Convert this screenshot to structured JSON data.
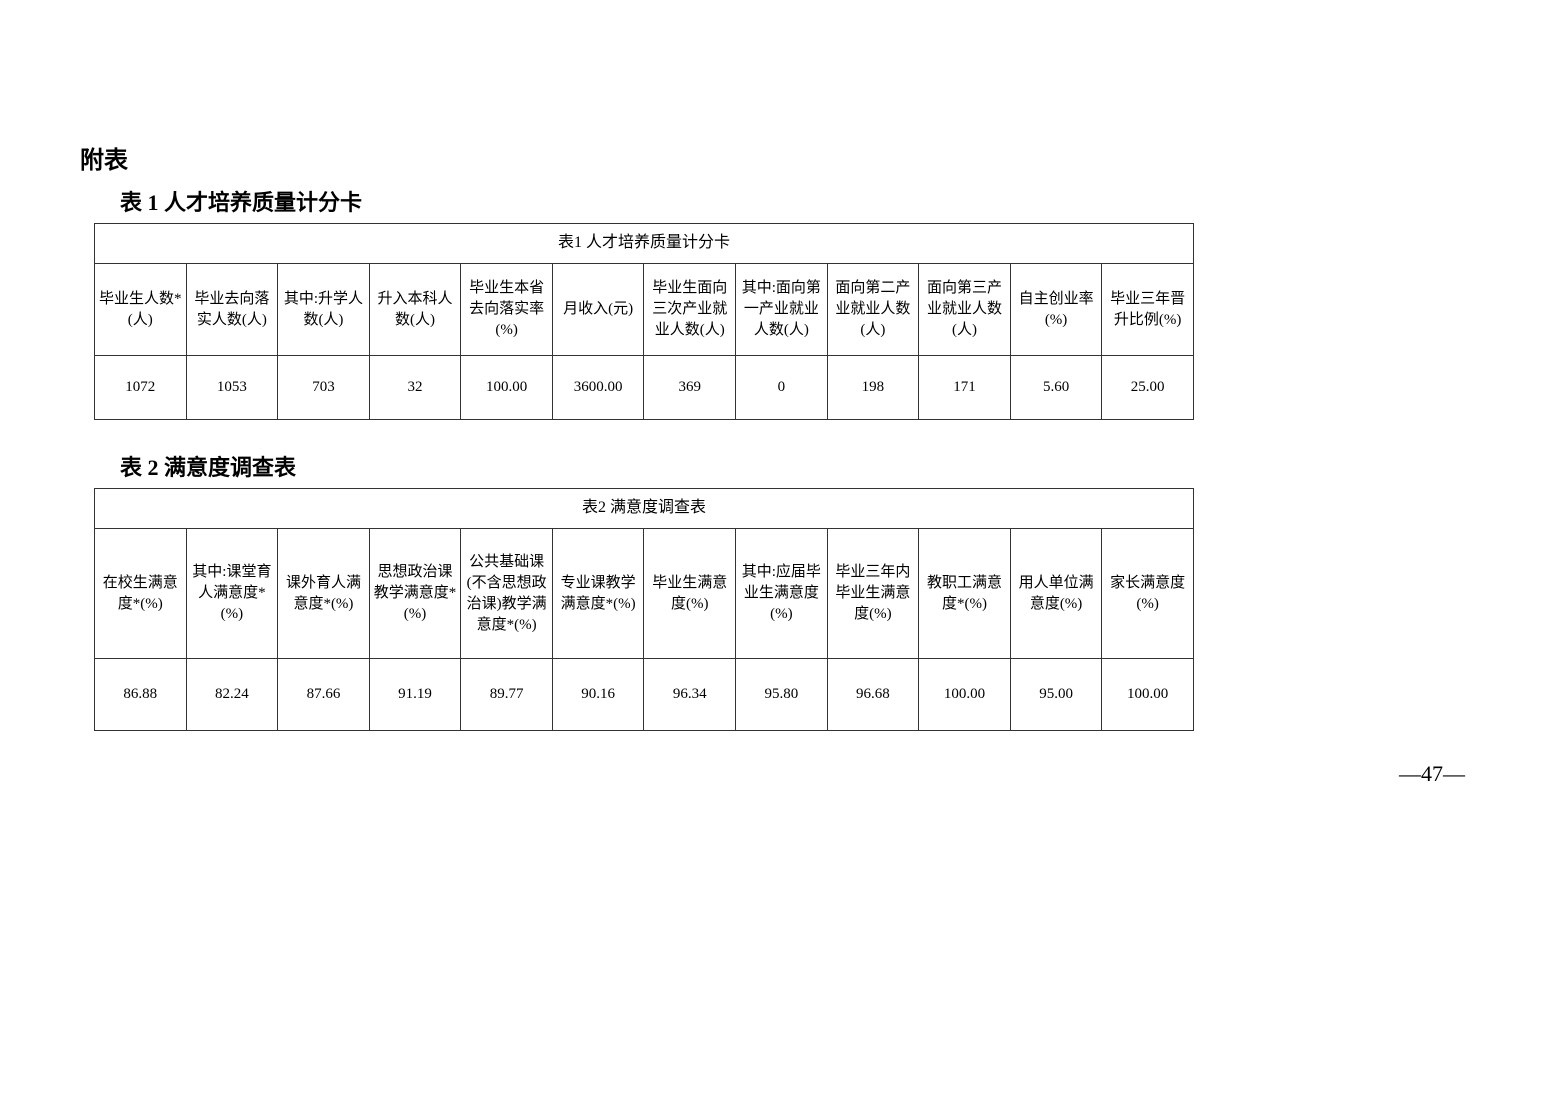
{
  "section_title": "附表",
  "table1": {
    "heading": "表 1 人才培养质量计分卡",
    "caption": "表1 人才培养质量计分卡",
    "columns": [
      "毕业生人数*(人)",
      "毕业去向落实人数(人)",
      "其中:升学人数(人)",
      "升入本科人数(人)",
      "毕业生本省去向落实率(%)",
      "月收入(元)",
      "毕业生面向三次产业就业人数(人)",
      "其中:面向第一产业就业人数(人)",
      "面向第二产业就业人数(人)",
      "面向第三产业就业人数(人)",
      "自主创业率(%)",
      "毕业三年晋升比例(%)"
    ],
    "values": [
      "1072",
      "1053",
      "703",
      "32",
      "100.00",
      "3600.00",
      "369",
      "0",
      "198",
      "171",
      "5.60",
      "25.00"
    ]
  },
  "table2": {
    "heading": "表 2 满意度调查表",
    "caption": "表2 满意度调查表",
    "columns": [
      "在校生满意度*(%)",
      "其中:课堂育人满意度*(%)",
      "课外育人满意度*(%)",
      "思想政治课教学满意度*(%)",
      "公共基础课(不含思想政治课)教学满意度*(%)",
      "专业课教学满意度*(%)",
      "毕业生满意度(%)",
      "其中:应届毕业生满意度(%)",
      "毕业三年内毕业生满意度(%)",
      "教职工满意度*(%)",
      "用人单位满意度(%)",
      "家长满意度(%)"
    ],
    "values": [
      "86.88",
      "82.24",
      "87.66",
      "91.19",
      "89.77",
      "90.16",
      "96.34",
      "95.80",
      "96.68",
      "100.00",
      "95.00",
      "100.00"
    ]
  },
  "page_number": "—47—"
}
